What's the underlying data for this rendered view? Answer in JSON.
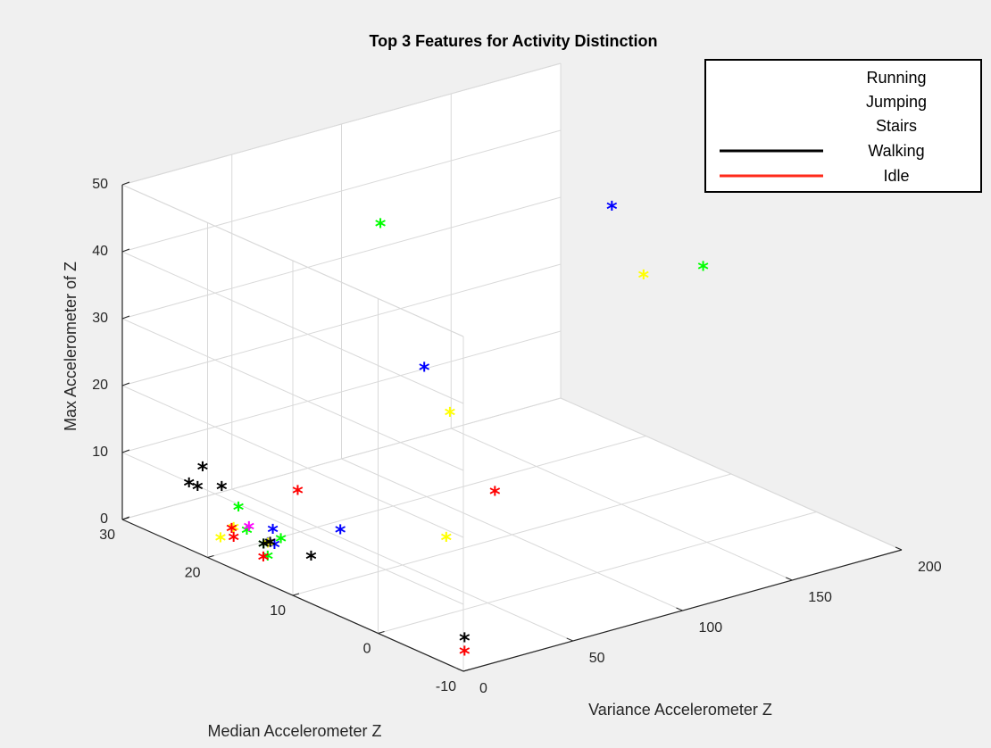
{
  "chart_data": {
    "type": "scatter",
    "title": "Top 3 Features for Activity Distinction",
    "xlabel": "Variance Accelerometer Z",
    "ylabel": "Median Accelerometer Z",
    "zlabel": "Max Accelerometer of Z",
    "xlim": [
      0,
      200
    ],
    "ylim": [
      -10,
      30
    ],
    "zlim": [
      0,
      50
    ],
    "x_ticks": [
      "0",
      "50",
      "100",
      "150",
      "200"
    ],
    "y_ticks": [
      "-10",
      "0",
      "10",
      "20",
      "30"
    ],
    "z_ticks": [
      "0",
      "10",
      "20",
      "30",
      "40",
      "50"
    ],
    "grid": true,
    "legend_position": "top-right",
    "marker": "*",
    "legend": [
      {
        "name": "Running",
        "color": "#0000ff"
      },
      {
        "name": "Jumping",
        "color": "#00ff00"
      },
      {
        "name": "Stairs",
        "color": "#ffff00"
      },
      {
        "name": "Walking",
        "color": "#000000"
      },
      {
        "name": "Idle",
        "color": "#ff0000"
      }
    ],
    "series": [
      {
        "name": "Running",
        "color": "#0000ff",
        "points": [
          [
            165,
            15,
            40
          ],
          [
            95,
            19,
            20
          ],
          [
            45,
            16,
            2
          ],
          [
            8,
            15,
            4
          ],
          [
            22,
            18,
            3
          ],
          [
            15,
            16,
            2.5
          ]
        ]
      },
      {
        "name": "Jumping",
        "color": "#00ff00",
        "points": [
          [
            110,
            28,
            35
          ],
          [
            195,
            12,
            30
          ],
          [
            14,
            15,
            4
          ],
          [
            18,
            21,
            5
          ],
          [
            14,
            19,
            3
          ],
          [
            10,
            16,
            3
          ],
          [
            8,
            15,
            2
          ]
        ]
      },
      {
        "name": "Stairs",
        "color": "#ffff00",
        "points": [
          [
            160,
            10,
            33
          ],
          [
            95,
            16,
            15
          ],
          [
            70,
            10,
            2
          ],
          [
            8,
            19,
            4
          ],
          [
            2,
            19,
            3
          ],
          [
            12,
            16,
            3
          ]
        ]
      },
      {
        "name": "Walking",
        "color": "#000000",
        "points": [
          [
            11,
            25,
            7
          ],
          [
            11,
            24,
            7
          ],
          [
            22,
            24,
            6
          ],
          [
            25,
            27,
            7
          ],
          [
            10,
            16,
            3
          ],
          [
            13,
            16,
            3
          ],
          [
            20,
            13,
            2
          ],
          [
            20,
            -5,
            0
          ]
        ]
      },
      {
        "name": "Idle",
        "color": "#ff0000",
        "points": [
          [
            100,
            12,
            5
          ],
          [
            45,
            21,
            5
          ],
          [
            11,
            20,
            3
          ],
          [
            8,
            19,
            2.5
          ],
          [
            6,
            15,
            2
          ],
          [
            20,
            -5,
            -2
          ]
        ]
      },
      {
        "name": "",
        "color": "#ff00ff",
        "points": [
          [
            15,
            19,
            3.5
          ]
        ]
      }
    ]
  }
}
